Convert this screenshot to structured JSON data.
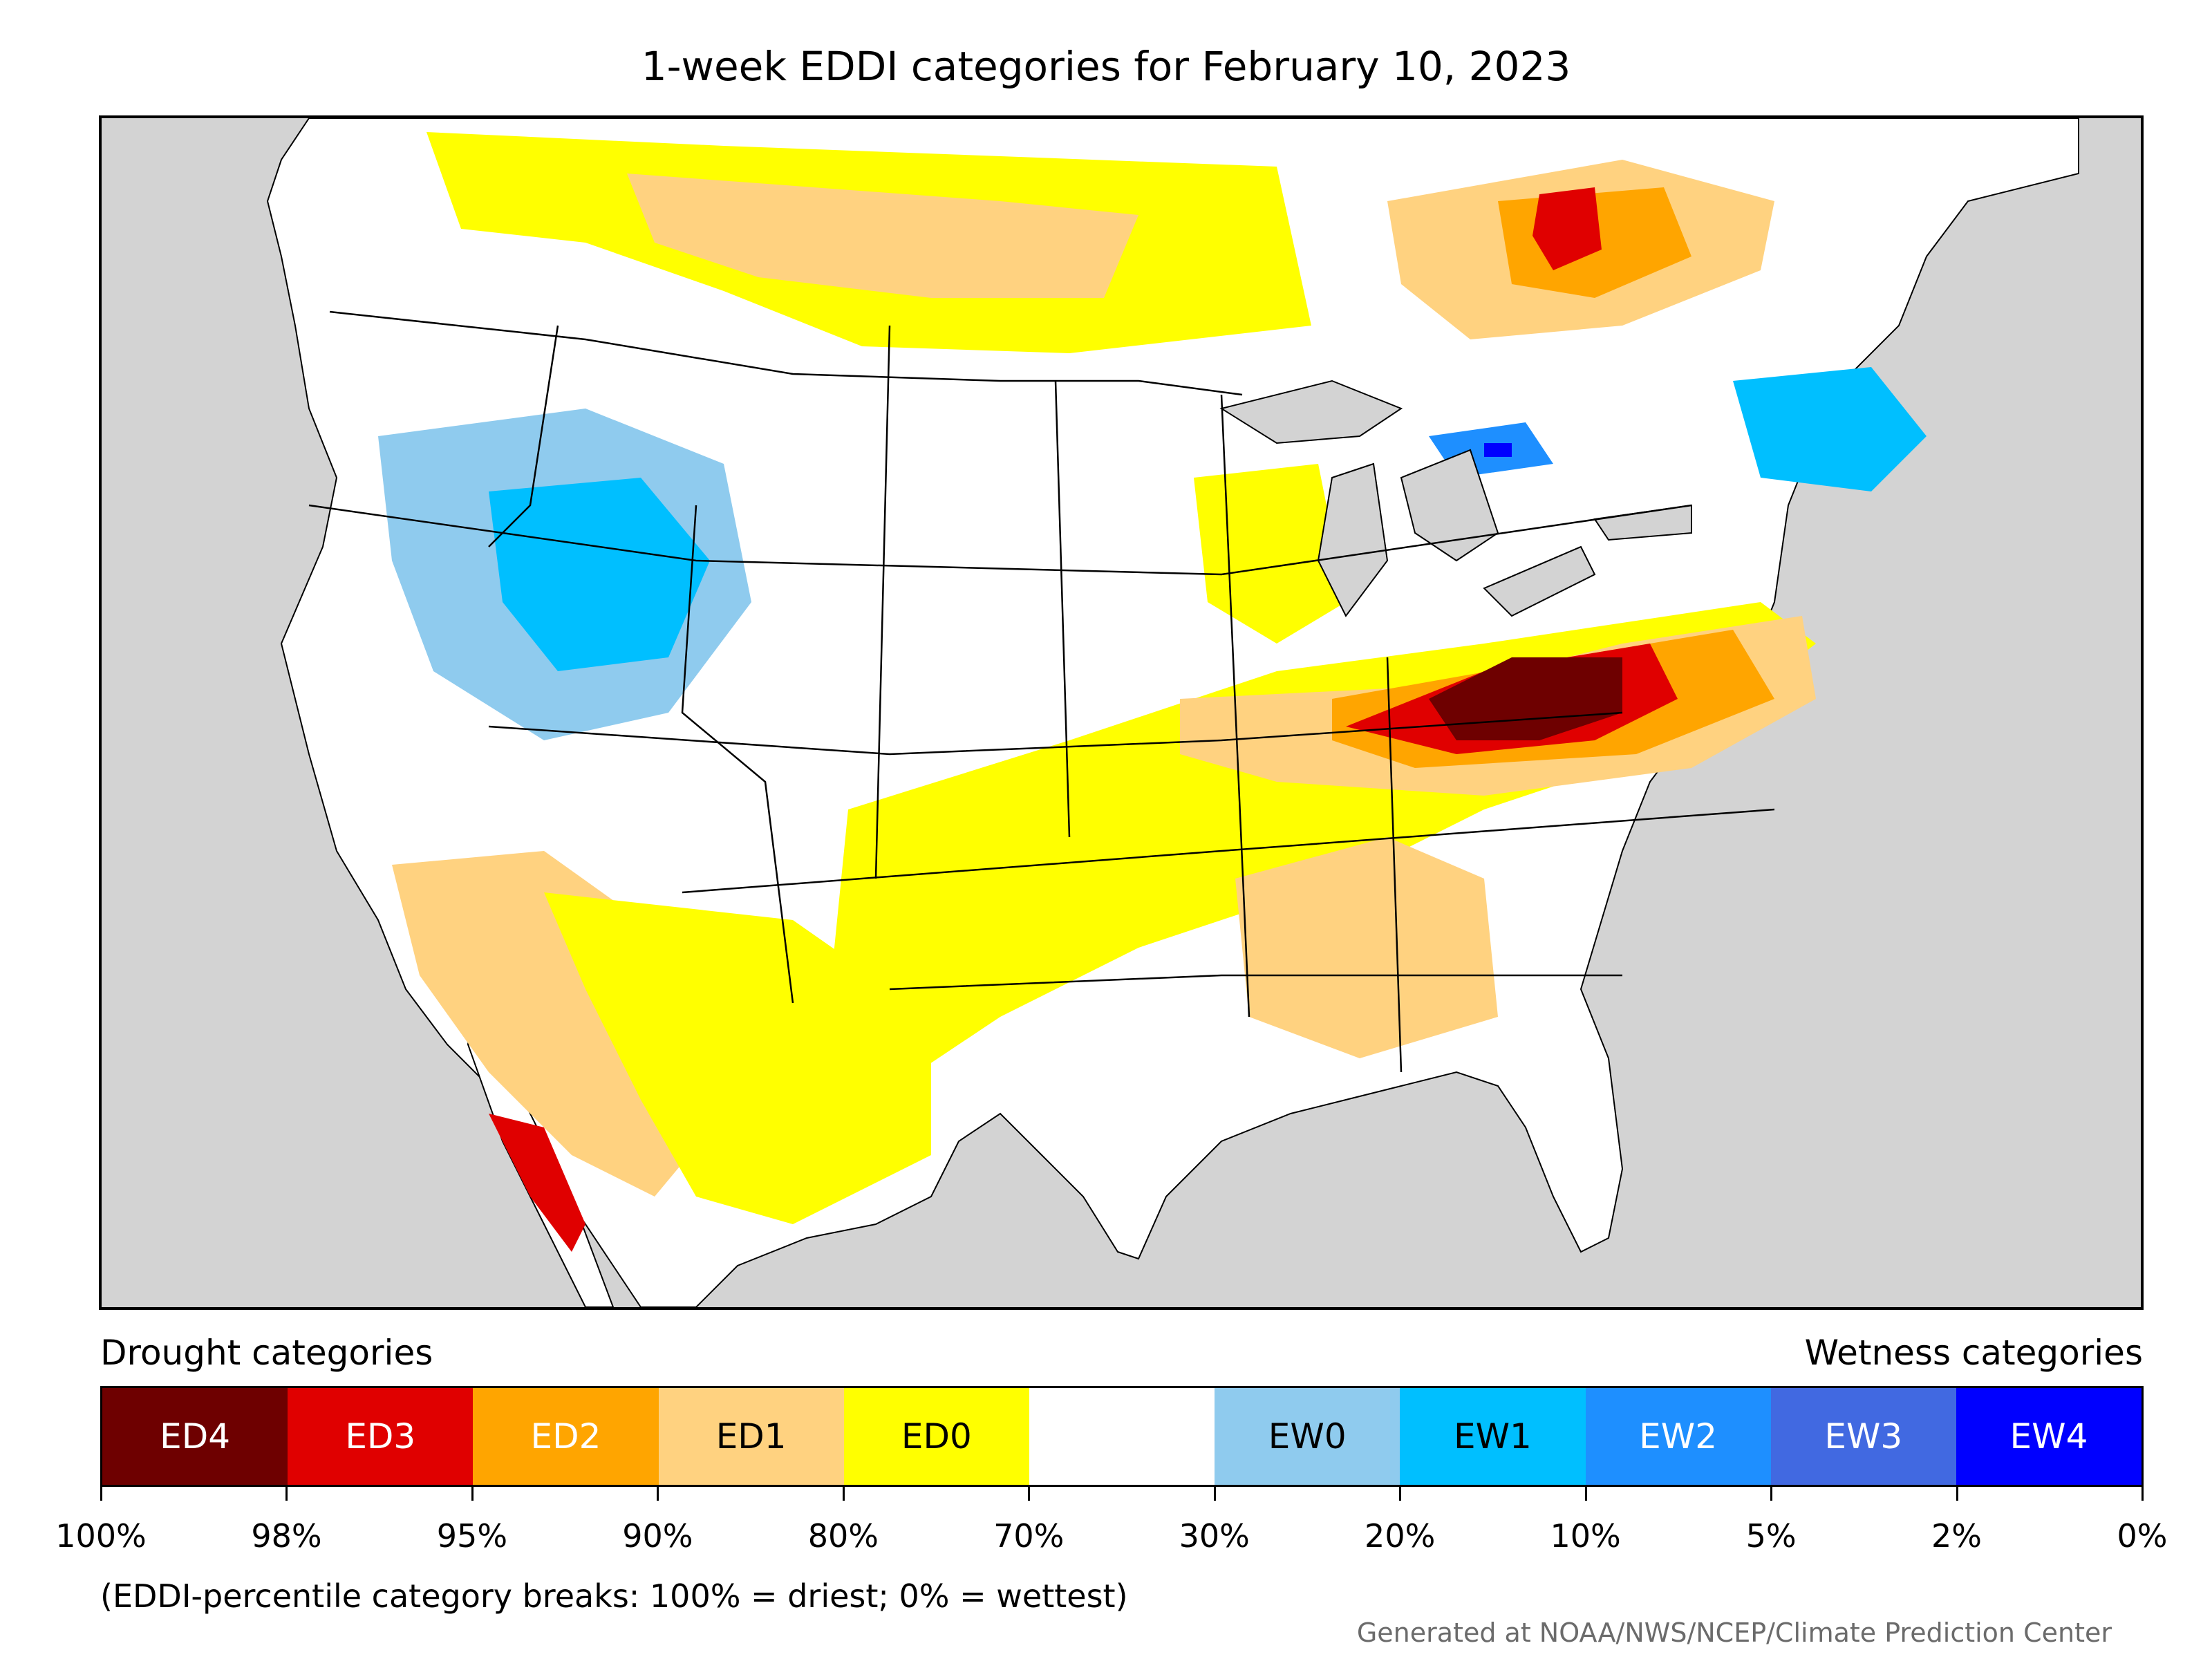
{
  "title": "1-week EDDI categories for February 10, 2023",
  "legend": {
    "left_heading": "Drought categories",
    "right_heading": "Wetness categories",
    "categories": [
      {
        "label": "ED4",
        "color": "#6e0000",
        "text_color": "#ffffff"
      },
      {
        "label": "ED3",
        "color": "#e00000",
        "text_color": "#ffffff"
      },
      {
        "label": "ED2",
        "color": "#ffa500",
        "text_color": "#ffffff"
      },
      {
        "label": "ED1",
        "color": "#ffd280",
        "text_color": "#000000"
      },
      {
        "label": "ED0",
        "color": "#ffff00",
        "text_color": "#000000"
      },
      {
        "label": "",
        "color": "#ffffff",
        "text_color": "#000000"
      },
      {
        "label": "EW0",
        "color": "#8fcbee",
        "text_color": "#000000"
      },
      {
        "label": "EW1",
        "color": "#00bfff",
        "text_color": "#000000"
      },
      {
        "label": "EW2",
        "color": "#1e8fff",
        "text_color": "#ffffff"
      },
      {
        "label": "EW3",
        "color": "#4169e1",
        "text_color": "#ffffff"
      },
      {
        "label": "EW4",
        "color": "#0000ff",
        "text_color": "#ffffff"
      }
    ],
    "breaks": [
      "100%",
      "98%",
      "95%",
      "90%",
      "80%",
      "70%",
      "30%",
      "20%",
      "10%",
      "5%",
      "2%",
      "0%"
    ]
  },
  "note": "(EDDI-percentile category breaks: 100% = driest; 0% = wettest)",
  "credit": "Generated at NOAA/NWS/NCEP/Climate Prediction Center",
  "colors": {
    "background_land_outside": "#d3d3d3",
    "water": "#d3d3d3",
    "land_neutral": "#ffffff",
    "border": "#000000"
  }
}
